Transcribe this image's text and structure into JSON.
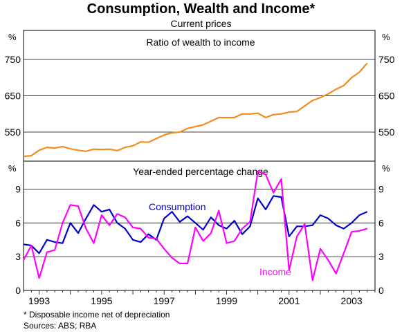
{
  "title": "Consumption, Wealth and Income*",
  "subtitle": "Current prices",
  "footnote": "*  Disposable income net of depreciation",
  "sources": "Sources: ABS; RBA",
  "chart_data": [
    {
      "type": "line",
      "title": "Ratio of wealth to income",
      "unit_label": "%",
      "ylim": [
        470,
        830
      ],
      "yticks": [
        550,
        650,
        750
      ],
      "xlim": [
        1992.5,
        2003.75
      ],
      "xticks": [
        1993,
        1995,
        1997,
        1999,
        2001,
        2003
      ],
      "grid": true,
      "colors": {
        "wealth_ratio": "#f28c1e"
      },
      "series": [
        {
          "key": "wealth_ratio",
          "x": [
            1992.5,
            1992.75,
            1993,
            1993.25,
            1993.5,
            1993.75,
            1994,
            1994.25,
            1994.5,
            1994.75,
            1995,
            1995.25,
            1995.5,
            1995.75,
            1996,
            1996.25,
            1996.5,
            1996.75,
            1997,
            1997.25,
            1997.5,
            1997.75,
            1998,
            1998.25,
            1998.5,
            1998.75,
            1999,
            1999.25,
            1999.5,
            1999.75,
            2000,
            2000.25,
            2000.5,
            2000.75,
            2001,
            2001.25,
            2001.5,
            2001.75,
            2002,
            2002.25,
            2002.5,
            2002.75,
            2003,
            2003.25,
            2003.5
          ],
          "y": [
            483,
            485,
            500,
            508,
            506,
            510,
            504,
            500,
            497,
            503,
            502,
            503,
            499,
            508,
            512,
            523,
            522,
            532,
            542,
            548,
            550,
            560,
            565,
            570,
            580,
            590,
            590,
            590,
            600,
            600,
            602,
            590,
            598,
            600,
            605,
            607,
            622,
            637,
            645,
            655,
            668,
            678,
            700,
            715,
            740
          ]
        }
      ]
    },
    {
      "type": "line",
      "title": "Year-ended percentage change",
      "unit_label": "%",
      "ylim": [
        0,
        11.5
      ],
      "yticks": [
        0,
        3,
        6,
        9
      ],
      "xlim": [
        1992.5,
        2003.75
      ],
      "xticks": [
        1993,
        1995,
        1997,
        1999,
        2001,
        2003
      ],
      "grid": true,
      "annotations": [
        "Consumption",
        "Income"
      ],
      "colors": {
        "Consumption": "#0000cc",
        "Income": "#ff00ff"
      },
      "series": [
        {
          "name": "Consumption",
          "x": [
            1992.5,
            1992.75,
            1993,
            1993.25,
            1993.5,
            1993.75,
            1994,
            1994.25,
            1994.5,
            1994.75,
            1995,
            1995.25,
            1995.5,
            1995.75,
            1996,
            1996.25,
            1996.5,
            1996.75,
            1997,
            1997.25,
            1997.5,
            1997.75,
            1998,
            1998.25,
            1998.5,
            1998.75,
            1999,
            1999.25,
            1999.5,
            1999.75,
            2000,
            2000.25,
            2000.5,
            2000.75,
            2001,
            2001.25,
            2001.5,
            2001.75,
            2002,
            2002.25,
            2002.5,
            2002.75,
            2003,
            2003.25,
            2003.5
          ],
          "y": [
            4.1,
            4.0,
            3.3,
            4.5,
            4.3,
            4.2,
            6.0,
            5.1,
            6.4,
            7.6,
            7.0,
            7.2,
            6.0,
            5.5,
            4.5,
            4.3,
            5.0,
            4.5,
            6.4,
            7.0,
            6.1,
            6.6,
            6.0,
            5.4,
            6.5,
            5.8,
            5.5,
            6.2,
            5.0,
            5.7,
            8.2,
            7.2,
            8.4,
            8.3,
            4.8,
            5.7,
            5.7,
            5.8,
            6.7,
            6.4,
            5.8,
            5.5,
            6.0,
            6.7,
            7.0
          ]
        },
        {
          "name": "Income",
          "x": [
            1992.5,
            1992.75,
            1993,
            1993.25,
            1993.5,
            1993.75,
            1994,
            1994.25,
            1994.5,
            1994.75,
            1995,
            1995.25,
            1995.5,
            1995.75,
            1996,
            1996.25,
            1996.5,
            1996.75,
            1997,
            1997.25,
            1997.5,
            1997.75,
            1998,
            1998.25,
            1998.5,
            1998.75,
            1999,
            1999.25,
            1999.5,
            1999.75,
            2000,
            2000.25,
            2000.5,
            2000.75,
            2001,
            2001.25,
            2001.5,
            2001.75,
            2002,
            2002.25,
            2002.5,
            2002.75,
            2003,
            2003.25,
            2003.5
          ],
          "y": [
            2.7,
            4.0,
            1.1,
            3.4,
            3.6,
            6.0,
            7.6,
            7.5,
            5.5,
            4.2,
            6.7,
            5.8,
            6.8,
            6.5,
            5.6,
            5.5,
            4.7,
            4.6,
            3.7,
            2.9,
            2.4,
            2.4,
            5.6,
            4.4,
            5.1,
            7.1,
            4.2,
            4.4,
            5.5,
            6.1,
            10.6,
            10.3,
            8.7,
            9.9,
            1.8,
            4.8,
            5.9,
            0.9,
            3.7,
            2.7,
            1.5,
            3.3,
            5.2,
            5.3,
            5.5
          ]
        }
      ]
    }
  ]
}
